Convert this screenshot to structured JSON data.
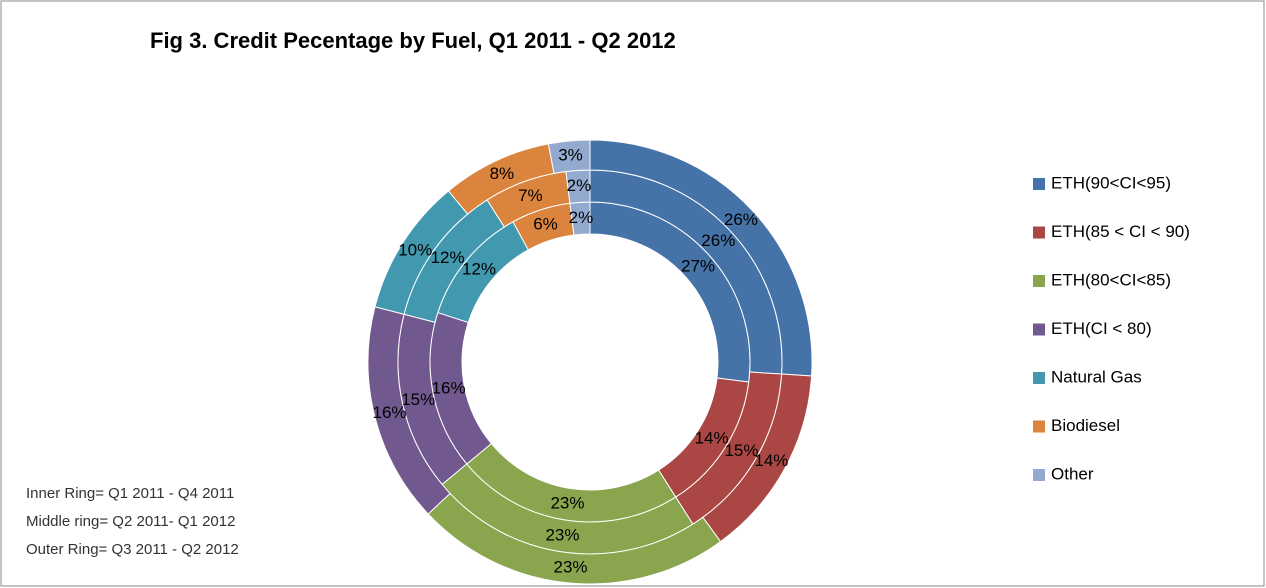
{
  "chart_data": {
    "type": "donut",
    "title": "Fig 3. Credit Pecentage by Fuel, Q1 2011 - Q2 2012",
    "categories": [
      "ETH(90<CI<95)",
      "ETH(85 < CI < 90)",
      "ETH(80<CI<85)",
      "ETH(CI < 80)",
      "Natural Gas",
      "Biodiesel",
      "Other"
    ],
    "colors": [
      "#4572a7",
      "#aa4643",
      "#89a54e",
      "#71588f",
      "#4198af",
      "#db843d",
      "#93a9cf"
    ],
    "rings": [
      {
        "values": [
          27,
          14,
          23,
          16,
          12,
          6,
          2
        ],
        "value_labels": [
          "27%",
          "14%",
          "23%",
          "16%",
          "12%",
          "6%",
          "2%"
        ]
      },
      {
        "values": [
          26,
          15,
          23,
          15,
          12,
          7,
          2
        ],
        "value_labels": [
          "26%",
          "15%",
          "23%",
          "15%",
          "12%",
          "7%",
          "2%"
        ]
      },
      {
        "values": [
          26,
          14,
          23,
          16,
          10,
          8,
          3
        ],
        "value_labels": [
          "26%",
          "14%",
          "23%",
          "16%",
          "10%",
          "8%",
          "3%"
        ]
      }
    ],
    "annotations": [
      "Inner Ring= Q1 2011 - Q4 2011",
      "Middle ring= Q2 2011- Q1 2012",
      "Outer Ring= Q3 2011 - Q2 2012"
    ],
    "legend": "right"
  }
}
